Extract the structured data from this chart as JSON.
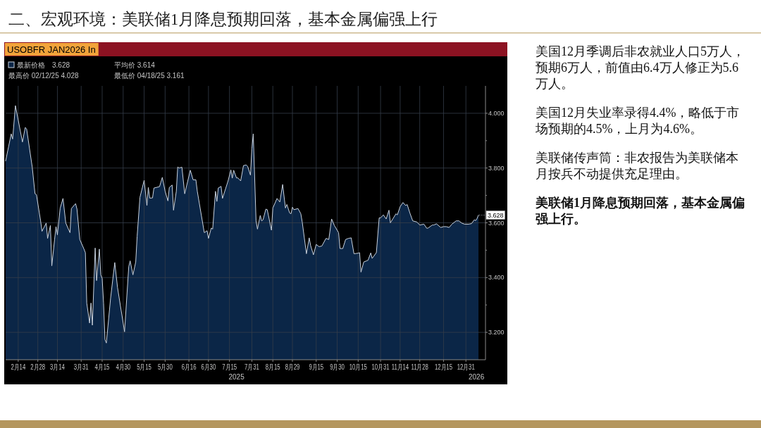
{
  "chart_data": {
    "type": "area",
    "title": "二、宏观环境：美联储1月降息预期回落，基本金属偏强上行",
    "subtitle": "USOBFR JAN2026 In",
    "x": [
      "2025-02-05",
      "2025-02-09",
      "2025-02-10",
      "2025-02-12",
      "2025-02-17",
      "2025-02-19",
      "2025-02-20",
      "2025-02-24",
      "2025-02-26",
      "2025-02-27",
      "2025-03-02",
      "2025-03-03",
      "2025-03-06",
      "2025-03-07",
      "2025-03-09",
      "2025-03-10",
      "2025-03-12",
      "2025-03-13",
      "2025-03-14",
      "2025-03-16",
      "2025-03-18",
      "2025-03-20",
      "2025-03-23",
      "2025-03-24",
      "2025-03-27",
      "2025-03-28",
      "2025-03-30",
      "2025-04-02",
      "2025-04-03",
      "2025-04-04",
      "2025-04-06",
      "2025-04-07",
      "2025-04-08",
      "2025-04-10",
      "2025-04-11",
      "2025-04-13",
      "2025-04-14",
      "2025-04-15",
      "2025-04-16",
      "2025-04-17",
      "2025-04-18",
      "2025-04-21",
      "2025-04-24",
      "2025-04-26",
      "2025-05-01",
      "2025-05-04",
      "2025-05-05",
      "2025-05-07",
      "2025-05-09",
      "2025-05-10",
      "2025-05-12",
      "2025-05-15",
      "2025-05-17",
      "2025-05-18",
      "2025-05-19",
      "2025-05-21",
      "2025-05-22",
      "2025-05-26",
      "2025-05-28",
      "2025-05-30",
      "2025-06-01",
      "2025-06-02",
      "2025-06-04",
      "2025-06-05",
      "2025-06-07",
      "2025-06-08",
      "2025-06-09",
      "2025-06-11",
      "2025-06-13",
      "2025-06-17",
      "2025-06-19",
      "2025-06-21",
      "2025-06-22",
      "2025-06-27",
      "2025-06-29",
      "2025-06-30",
      "2025-07-02",
      "2025-07-03",
      "2025-07-05",
      "2025-07-06",
      "2025-07-07",
      "2025-07-09",
      "2025-07-10",
      "2025-07-14",
      "2025-07-16",
      "2025-07-17",
      "2025-07-18",
      "2025-07-20",
      "2025-07-21",
      "2025-07-23",
      "2025-07-25",
      "2025-07-27",
      "2025-07-28",
      "2025-07-30",
      "2025-07-31",
      "2025-08-01",
      "2025-08-03",
      "2025-08-04",
      "2025-08-06",
      "2025-08-07",
      "2025-08-08",
      "2025-08-10",
      "2025-08-11",
      "2025-08-14",
      "2025-08-15",
      "2025-08-18",
      "2025-08-20",
      "2025-08-22",
      "2025-08-24",
      "2025-08-25",
      "2025-08-27",
      "2025-08-28",
      "2025-08-29",
      "2025-08-30",
      "2025-09-02",
      "2025-09-04",
      "2025-09-05",
      "2025-09-08",
      "2025-09-10",
      "2025-09-11",
      "2025-09-13",
      "2025-09-15",
      "2025-09-17",
      "2025-09-19",
      "2025-09-22",
      "2025-09-24",
      "2025-09-26",
      "2025-09-28",
      "2025-10-01",
      "2025-10-02",
      "2025-10-04",
      "2025-10-06",
      "2025-10-08",
      "2025-10-10",
      "2025-10-12",
      "2025-10-15",
      "2025-10-16",
      "2025-10-17",
      "2025-10-19",
      "2025-10-21",
      "2025-10-22",
      "2025-10-24",
      "2025-10-25",
      "2025-10-28",
      "2025-10-30",
      "2025-10-31",
      "2025-11-02",
      "2025-11-04",
      "2025-11-06",
      "2025-11-07",
      "2025-11-09",
      "2025-11-11",
      "2025-11-12",
      "2025-11-14",
      "2025-11-16",
      "2025-11-18",
      "2025-11-19",
      "2025-11-21",
      "2025-11-23",
      "2025-11-26",
      "2025-11-28",
      "2025-12-01",
      "2025-12-03",
      "2025-12-04",
      "2025-12-07",
      "2025-12-08",
      "2025-12-10",
      "2025-12-13",
      "2025-12-15",
      "2025-12-17",
      "2025-12-19",
      "2025-12-21",
      "2025-12-24",
      "2025-12-26",
      "2025-12-28",
      "2025-12-30",
      "2026-01-02",
      "2026-01-04",
      "2026-01-06",
      "2026-01-07",
      "2026-01-08",
      "2026-01-09"
    ],
    "series": [
      {
        "name": "最新价格",
        "color": "#0b2647",
        "values": [
          3.826,
          3.925,
          3.906,
          4.028,
          3.895,
          3.948,
          3.943,
          3.804,
          3.706,
          3.703,
          3.607,
          3.569,
          3.599,
          3.543,
          3.59,
          3.443,
          3.539,
          3.586,
          3.556,
          3.654,
          3.689,
          3.599,
          3.564,
          3.652,
          3.67,
          3.65,
          3.539,
          3.504,
          3.491,
          3.307,
          3.234,
          3.307,
          3.226,
          3.508,
          3.389,
          3.504,
          3.41,
          3.397,
          3.307,
          3.174,
          3.161,
          3.324,
          3.455,
          3.363,
          3.202,
          3.44,
          3.461,
          3.41,
          3.457,
          3.551,
          3.693,
          3.755,
          3.663,
          3.729,
          3.69,
          3.691,
          3.727,
          3.732,
          3.766,
          3.715,
          3.68,
          3.729,
          3.738,
          3.646,
          3.715,
          3.804,
          3.8,
          3.803,
          3.706,
          3.792,
          3.757,
          3.757,
          3.715,
          3.564,
          3.571,
          3.543,
          3.581,
          3.577,
          3.715,
          3.678,
          3.727,
          3.733,
          3.689,
          3.753,
          3.793,
          3.763,
          3.792,
          3.764,
          3.764,
          3.753,
          3.809,
          3.811,
          3.806,
          3.774,
          3.87,
          3.925,
          3.607,
          3.577,
          3.627,
          3.607,
          3.611,
          3.65,
          3.648,
          3.573,
          3.654,
          3.689,
          3.676,
          3.74,
          3.654,
          3.667,
          3.636,
          3.633,
          3.657,
          3.648,
          3.652,
          3.633,
          3.603,
          3.487,
          3.545,
          3.517,
          3.483,
          3.521,
          3.513,
          3.515,
          3.543,
          3.539,
          3.614,
          3.59,
          3.564,
          3.506,
          3.506,
          3.539,
          3.543,
          3.545,
          3.487,
          3.489,
          3.491,
          3.42,
          3.457,
          3.461,
          3.463,
          3.49,
          3.47,
          3.491,
          3.618,
          3.618,
          3.629,
          3.614,
          3.646,
          3.6,
          3.616,
          3.633,
          3.629,
          3.659,
          3.674,
          3.663,
          3.667,
          3.635,
          3.607,
          3.603,
          3.592,
          3.595,
          3.58,
          3.581,
          3.592,
          3.592,
          3.596,
          3.583,
          3.586,
          3.586,
          3.583,
          3.595,
          3.607,
          3.607,
          3.599,
          3.595,
          3.595,
          3.597,
          3.611,
          3.608,
          3.616,
          3.628
        ]
      }
    ],
    "xlim": [
      "2025-02-05",
      "2026-01-14"
    ],
    "xticks": [
      {
        "value": "2025-02-14",
        "label": "2月14"
      },
      {
        "value": "2025-02-28",
        "label": "2月28"
      },
      {
        "value": "2025-03-14",
        "label": "3月14"
      },
      {
        "value": "2025-03-31",
        "label": "3月31"
      },
      {
        "value": "2025-04-15",
        "label": "4月15"
      },
      {
        "value": "2025-04-30",
        "label": "4月30"
      },
      {
        "value": "2025-05-15",
        "label": "5月15"
      },
      {
        "value": "2025-05-30",
        "label": "5月30"
      },
      {
        "value": "2025-06-16",
        "label": "6月16"
      },
      {
        "value": "2025-06-30",
        "label": "6月30"
      },
      {
        "value": "2025-07-15",
        "label": "7月15"
      },
      {
        "value": "2025-07-31",
        "label": "7月31"
      },
      {
        "value": "2025-08-15",
        "label": "8月15"
      },
      {
        "value": "2025-08-29",
        "label": "8月29"
      },
      {
        "value": "2025-09-15",
        "label": "9月15"
      },
      {
        "value": "2025-09-30",
        "label": "9月30"
      },
      {
        "value": "2025-10-15",
        "label": "10月15"
      },
      {
        "value": "2025-10-31",
        "label": "10月31"
      },
      {
        "value": "2025-11-14",
        "label": "11月14"
      },
      {
        "value": "2025-11-28",
        "label": "11月28"
      },
      {
        "value": "2025-12-15",
        "label": "12月15"
      },
      {
        "value": "2025-12-31",
        "label": "12月31"
      }
    ],
    "ylim": [
      3.1,
      4.1
    ],
    "yticks": [
      {
        "value": 3.2,
        "label": "3.200"
      },
      {
        "value": 3.3,
        "label": null
      },
      {
        "value": 3.4,
        "label": "3.400"
      },
      {
        "value": 3.5,
        "label": null
      },
      {
        "value": 3.6,
        "label": "3.600"
      },
      {
        "value": 3.7,
        "label": null
      },
      {
        "value": 3.8,
        "label": "3.800"
      },
      {
        "value": 3.9,
        "label": null
      },
      {
        "value": 4.0,
        "label": "4.000"
      }
    ],
    "grid": true,
    "legend": "top left",
    "annotations": [
      {
        "text": "3.628",
        "x": "2026-01-09",
        "y": 3.628
      },
      "3.628",
      "最高价 02/12/25 4.028",
      "平均价 3.614",
      "最低价 04/18/25 3.161",
      "2025",
      "2026",
      "美国12月季调后非农就业人口5万人，预期6万人，前值由6.4万人修正为5.6万人。",
      "美国12月失业率录得4.4%，略低于市场预期的4.5%，上月为4.6%。",
      "美联储传声筒：非农报告为美联储本月按兵不动提供充足理由。",
      "美联储1月降息预期回落，基本金属偏强上行。"
    ]
  }
}
